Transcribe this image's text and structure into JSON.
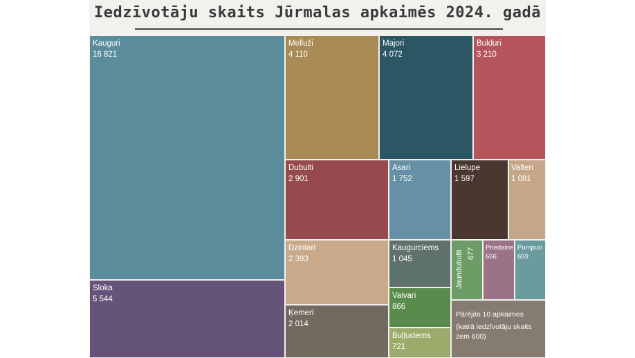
{
  "title": "Iedzīvotāju skaits Jūrmalas apkaimēs 2024. gadā",
  "chart_data": {
    "type": "treemap",
    "title": "Iedzīvotāju skaits Jūrmalas apkaimēs 2024. gadā",
    "tiles": [
      {
        "id": "kauguri",
        "name": "Kauguri",
        "value": "16 821",
        "color": "#5a8c9c"
      },
      {
        "id": "sloka",
        "name": "Sloka",
        "value": "5 544",
        "color": "#66537a"
      },
      {
        "id": "mellužī",
        "name": "Melluži",
        "value": "4 110",
        "color": "#a88b55"
      },
      {
        "id": "majori",
        "name": "Majori",
        "value": "4 072",
        "color": "#2c5664"
      },
      {
        "id": "bulduri",
        "name": "Bulduri",
        "value": "3 210",
        "color": "#b5555b"
      },
      {
        "id": "dubulti",
        "name": "Dubulti",
        "value": "2 901",
        "color": "#964a4d"
      },
      {
        "id": "asari",
        "name": "Asari",
        "value": "1 752",
        "color": "#6790a6"
      },
      {
        "id": "lielupe",
        "name": "Lielupe",
        "value": "1 597",
        "color": "#4a3730"
      },
      {
        "id": "valteri",
        "name": "Valteri",
        "value": "1 081",
        "color": "#c5a688"
      },
      {
        "id": "dzintari",
        "name": "Dzintari",
        "value": "2 393",
        "color": "#c8a98a"
      },
      {
        "id": "kaugurciems",
        "name": "Kaugurciems",
        "value": "1 045",
        "color": "#5e716c"
      },
      {
        "id": "jaundubulti",
        "name": "Jaundubulti",
        "value": "677",
        "color": "#6d9c66"
      },
      {
        "id": "priedaine",
        "name": "Priedaine",
        "value": "666",
        "color": "#9b7387"
      },
      {
        "id": "pumpuri",
        "name": "Pumpuri",
        "value": "659",
        "color": "#6a9c9e"
      },
      {
        "id": "kemeri",
        "name": "Ķemeri",
        "value": "2 014",
        "color": "#72695f"
      },
      {
        "id": "vaivari",
        "name": "Vaivari",
        "value": "866",
        "color": "#5a8a4c"
      },
      {
        "id": "bulluciems",
        "name": "Buļļuciems",
        "value": "721",
        "color": "#9bab6c"
      },
      {
        "id": "parejas",
        "name": "Pārējās 10 apkaimes",
        "note": "(katrā iedzīvotāju skaits zem 600)",
        "color": "#857b70"
      }
    ]
  }
}
